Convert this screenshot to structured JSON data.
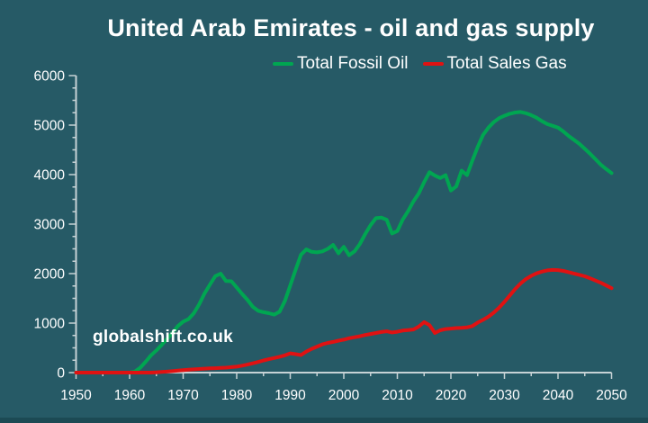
{
  "page": {
    "title": "United Arab Emirates - oil and gas supply",
    "watermark": "globalshift.co.uk"
  },
  "legend": {
    "items": [
      {
        "label": "Total Fossil Oil",
        "color": "#00a651"
      },
      {
        "label": "Total Sales Gas",
        "color": "#e01212"
      }
    ]
  },
  "style": {
    "background": "#265a66",
    "bottom_strip": "#1c4a54",
    "axis_color": "#c6d2d5",
    "text_color": "#ffffff"
  },
  "chart_data": {
    "type": "line",
    "title": "United Arab Emirates - oil and gas supply",
    "xlabel": "",
    "ylabel": "",
    "xlim": [
      1950,
      2050
    ],
    "ylim": [
      0,
      6000
    ],
    "x_step": 1,
    "x_minor_step": 5,
    "y_minor_step": 250,
    "grid": false,
    "legend_position": "top",
    "xticks": [
      1950,
      1960,
      1970,
      1980,
      1990,
      2000,
      2010,
      2020,
      2030,
      2040,
      2050
    ],
    "yticks": [
      0,
      1000,
      2000,
      3000,
      4000,
      5000,
      6000
    ],
    "series": [
      {
        "name": "Total Fossil Oil",
        "color": "#00a651",
        "values": [
          0,
          0,
          0,
          0,
          0,
          0,
          0,
          0,
          0,
          0,
          0,
          20,
          100,
          220,
          350,
          450,
          560,
          680,
          800,
          940,
          1030,
          1080,
          1200,
          1380,
          1600,
          1780,
          1950,
          2000,
          1850,
          1845,
          1720,
          1590,
          1470,
          1330,
          1250,
          1220,
          1200,
          1170,
          1230,
          1450,
          1760,
          2080,
          2380,
          2490,
          2440,
          2430,
          2450,
          2500,
          2580,
          2410,
          2540,
          2370,
          2450,
          2600,
          2800,
          2980,
          3120,
          3130,
          3090,
          2810,
          2860,
          3090,
          3260,
          3460,
          3620,
          3850,
          4050,
          3980,
          3930,
          3990,
          3680,
          3760,
          4080,
          3990,
          4280,
          4560,
          4800,
          4950,
          5060,
          5140,
          5190,
          5230,
          5255,
          5265,
          5240,
          5200,
          5150,
          5080,
          5020,
          4985,
          4950,
          4870,
          4780,
          4700,
          4620,
          4520,
          4420,
          4310,
          4200,
          4110,
          4030
        ]
      },
      {
        "name": "Total Sales Gas",
        "color": "#e01212",
        "values": [
          0,
          0,
          0,
          0,
          0,
          0,
          0,
          0,
          0,
          0,
          0,
          0,
          0,
          0,
          0,
          5,
          12,
          20,
          30,
          40,
          50,
          58,
          65,
          72,
          80,
          85,
          90,
          95,
          100,
          110,
          120,
          140,
          162,
          188,
          215,
          245,
          270,
          295,
          320,
          350,
          390,
          372,
          355,
          425,
          480,
          525,
          570,
          600,
          620,
          645,
          665,
          695,
          715,
          735,
          760,
          780,
          800,
          820,
          835,
          810,
          825,
          850,
          860,
          870,
          930,
          1020,
          960,
          800,
          855,
          880,
          890,
          900,
          905,
          915,
          940,
          1010,
          1065,
          1130,
          1210,
          1310,
          1430,
          1560,
          1690,
          1800,
          1890,
          1955,
          2005,
          2040,
          2065,
          2075,
          2070,
          2055,
          2030,
          2000,
          1975,
          1945,
          1905,
          1860,
          1815,
          1760,
          1705
        ]
      }
    ]
  }
}
